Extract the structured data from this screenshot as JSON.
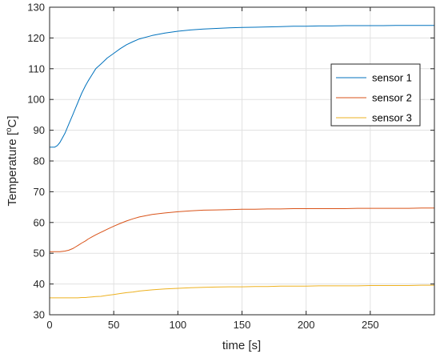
{
  "chart_data": {
    "type": "line",
    "xlabel": "time [s]",
    "ylabel": "Temperature  [°C]",
    "ylabel_main": "Temperature  [",
    "ylabel_sup": "o",
    "ylabel_unit": "C]",
    "xlim": [
      0,
      300
    ],
    "ylim": [
      30,
      130
    ],
    "xticks": [
      0,
      50,
      100,
      150,
      200,
      250
    ],
    "yticks": [
      30,
      40,
      50,
      60,
      70,
      80,
      90,
      100,
      110,
      120,
      130
    ],
    "grid": true,
    "legend_position": "top-right",
    "x": [
      0,
      2,
      4,
      6,
      8,
      10,
      12,
      15,
      18,
      20,
      22,
      25,
      28,
      30,
      33,
      36,
      40,
      45,
      50,
      55,
      60,
      65,
      70,
      80,
      90,
      100,
      110,
      120,
      130,
      140,
      150,
      160,
      170,
      180,
      190,
      200,
      210,
      220,
      230,
      240,
      250,
      260,
      270,
      280,
      290,
      300
    ],
    "series": [
      {
        "name": "sensor 1",
        "color": "#0072BD",
        "values": [
          84.5,
          84.5,
          84.5,
          85.0,
          86.0,
          87.5,
          89.0,
          92.0,
          95.0,
          97.0,
          99.0,
          102.0,
          104.5,
          106.0,
          108.0,
          110.0,
          111.5,
          113.5,
          115.0,
          116.5,
          117.8,
          118.8,
          119.7,
          120.8,
          121.6,
          122.2,
          122.6,
          122.9,
          123.1,
          123.3,
          123.4,
          123.5,
          123.6,
          123.7,
          123.8,
          123.8,
          123.9,
          123.9,
          124.0,
          124.0,
          124.0,
          124.0,
          124.1,
          124.1,
          124.1,
          124.1
        ]
      },
      {
        "name": "sensor 2",
        "color": "#D95319",
        "values": [
          50.5,
          50.5,
          50.5,
          50.5,
          50.5,
          50.6,
          50.7,
          51.0,
          51.5,
          52.0,
          52.5,
          53.3,
          54.0,
          54.6,
          55.3,
          56.0,
          56.8,
          57.8,
          58.8,
          59.7,
          60.5,
          61.2,
          61.8,
          62.6,
          63.1,
          63.5,
          63.8,
          64.0,
          64.1,
          64.2,
          64.3,
          64.3,
          64.4,
          64.4,
          64.5,
          64.5,
          64.5,
          64.5,
          64.5,
          64.6,
          64.6,
          64.6,
          64.6,
          64.6,
          64.7,
          64.7
        ]
      },
      {
        "name": "sensor 3",
        "color": "#EDB120",
        "values": [
          35.5,
          35.5,
          35.5,
          35.5,
          35.5,
          35.5,
          35.5,
          35.5,
          35.5,
          35.5,
          35.5,
          35.6,
          35.6,
          35.7,
          35.8,
          35.9,
          36.0,
          36.3,
          36.6,
          36.9,
          37.2,
          37.4,
          37.7,
          38.1,
          38.4,
          38.6,
          38.8,
          38.9,
          39.0,
          39.1,
          39.1,
          39.2,
          39.2,
          39.3,
          39.3,
          39.3,
          39.4,
          39.4,
          39.4,
          39.4,
          39.5,
          39.5,
          39.5,
          39.5,
          39.6,
          39.6
        ]
      }
    ]
  }
}
